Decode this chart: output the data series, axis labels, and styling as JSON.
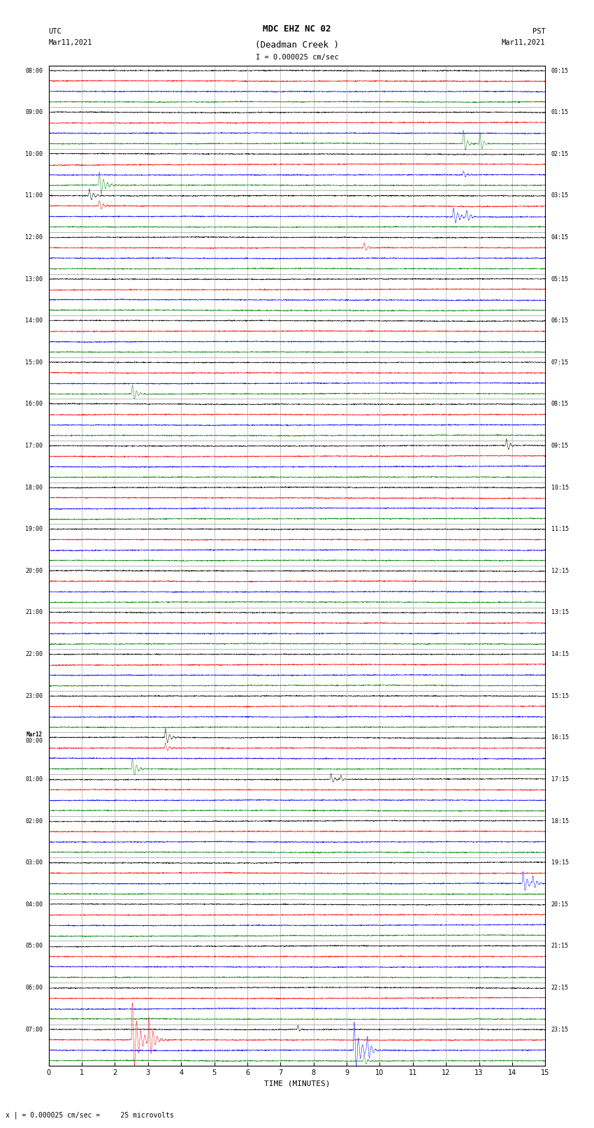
{
  "title_line1": "MDC EHZ NC 02",
  "title_line2": "(Deadman Creek )",
  "scale_text": "I = 0.000025 cm/sec",
  "left_label": "UTC\nMar11,2021",
  "right_label": "PST\nMar11,2021",
  "xlabel": "TIME (MINUTES)",
  "bottom_note": "x | = 0.000025 cm/sec =     25 microvolts",
  "utc_times": [
    "08:00",
    "09:00",
    "10:00",
    "11:00",
    "12:00",
    "13:00",
    "14:00",
    "15:00",
    "16:00",
    "17:00",
    "18:00",
    "19:00",
    "20:00",
    "21:00",
    "22:00",
    "23:00",
    "Mar12\n00:00",
    "01:00",
    "02:00",
    "03:00",
    "04:00",
    "05:00",
    "06:00",
    "07:00"
  ],
  "pst_times": [
    "00:15",
    "01:15",
    "02:15",
    "03:15",
    "04:15",
    "05:15",
    "06:15",
    "07:15",
    "08:15",
    "09:15",
    "10:15",
    "11:15",
    "12:15",
    "13:15",
    "14:15",
    "15:15",
    "16:15",
    "17:15",
    "18:15",
    "19:15",
    "20:15",
    "21:15",
    "22:15",
    "23:15"
  ],
  "n_rows": 24,
  "n_cols": 4,
  "colors": [
    "black",
    "red",
    "blue",
    "green"
  ],
  "fig_bg": "white",
  "plot_bg": "white",
  "grid_color": "#999999",
  "xmin": 0,
  "xmax": 15,
  "noise_std": 0.06,
  "events": [
    {
      "row": 1,
      "col": 3,
      "x": 12.5,
      "amp": 4.5,
      "decay": 0.08
    },
    {
      "row": 1,
      "col": 3,
      "x": 13.0,
      "amp": 3.5,
      "decay": 0.08
    },
    {
      "row": 2,
      "col": 3,
      "x": 1.5,
      "amp": 3.5,
      "decay": 0.15
    },
    {
      "row": 2,
      "col": 2,
      "x": 12.5,
      "amp": 1.2,
      "decay": 0.08
    },
    {
      "row": 3,
      "col": 0,
      "x": 1.2,
      "amp": 2.0,
      "decay": 0.12
    },
    {
      "row": 3,
      "col": 1,
      "x": 1.5,
      "amp": 1.5,
      "decay": 0.12
    },
    {
      "row": 3,
      "col": 2,
      "x": 12.2,
      "amp": 2.5,
      "decay": 0.15
    },
    {
      "row": 3,
      "col": 2,
      "x": 12.6,
      "amp": 1.8,
      "decay": 0.1
    },
    {
      "row": 4,
      "col": 1,
      "x": 9.5,
      "amp": 1.5,
      "decay": 0.08
    },
    {
      "row": 7,
      "col": 3,
      "x": 2.5,
      "amp": 2.5,
      "decay": 0.12
    },
    {
      "row": 9,
      "col": 0,
      "x": 13.8,
      "amp": 2.0,
      "decay": 0.1
    },
    {
      "row": 16,
      "col": 3,
      "x": 2.5,
      "amp": 3.0,
      "decay": 0.12
    },
    {
      "row": 16,
      "col": 0,
      "x": 3.5,
      "amp": 2.5,
      "decay": 0.12
    },
    {
      "row": 16,
      "col": 1,
      "x": 3.5,
      "amp": 1.5,
      "decay": 0.1
    },
    {
      "row": 17,
      "col": 0,
      "x": 8.5,
      "amp": 2.0,
      "decay": 0.08
    },
    {
      "row": 17,
      "col": 0,
      "x": 8.8,
      "amp": 1.5,
      "decay": 0.06
    },
    {
      "row": 19,
      "col": 2,
      "x": 14.3,
      "amp": 3.5,
      "decay": 0.12
    },
    {
      "row": 19,
      "col": 2,
      "x": 14.6,
      "amp": 2.5,
      "decay": 0.1
    },
    {
      "row": 23,
      "col": 0,
      "x": 7.5,
      "amp": 1.5,
      "decay": 0.06
    },
    {
      "row": 23,
      "col": 1,
      "x": 2.5,
      "amp": 10.0,
      "decay": 0.18
    },
    {
      "row": 23,
      "col": 1,
      "x": 3.0,
      "amp": 6.0,
      "decay": 0.12
    },
    {
      "row": 23,
      "col": 2,
      "x": 9.2,
      "amp": 8.0,
      "decay": 0.15
    },
    {
      "row": 23,
      "col": 2,
      "x": 9.6,
      "amp": 4.0,
      "decay": 0.1
    },
    {
      "row": 23,
      "col": 3,
      "x": 9.5,
      "amp": 2.0,
      "decay": 0.08
    }
  ]
}
